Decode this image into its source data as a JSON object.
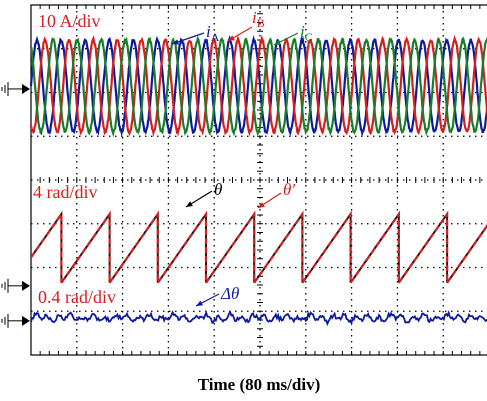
{
  "colors": {
    "phase_a": "#0d1a9c",
    "phase_b": "#d61e1e",
    "phase_c": "#1a7d2a",
    "theta": "#1a1a1a",
    "theta_est": "#d61e1e",
    "delta": "#0d1a9c",
    "scale_text": "#d61e1e",
    "grid": "#000000"
  },
  "chart_data": {
    "type": "line",
    "xlabel": "Time (80 ms/div)",
    "x_divisions": 10,
    "x_per_div_ms": 80,
    "y_divisions": 8,
    "grid": true,
    "traces": [
      {
        "group": "currents",
        "scale": "10 A/div",
        "periods_per_div": 1.9,
        "amplitude_div": 1.05,
        "ground_div_from_top": 1.85,
        "series": [
          {
            "name": "i",
            "sub": "A",
            "phase_deg": 0
          },
          {
            "name": "i",
            "sub": "B",
            "phase_deg": -120
          },
          {
            "name": "i",
            "sub": "C",
            "phase_deg": 120
          }
        ]
      },
      {
        "group": "angle",
        "scale": "4 rad/div",
        "periods_per_div": 0.95,
        "peak_rad": 6.28,
        "ground_div_from_top": 6.35,
        "series": [
          {
            "name": "θ",
            "sub": "",
            "style": "solid"
          },
          {
            "name": "θ′",
            "sub": "",
            "style": "dashed"
          }
        ]
      },
      {
        "group": "error",
        "scale": "0.4 rad/div",
        "ground_div_from_top": 7.15,
        "noise_amplitude_rad": 0.06,
        "series": [
          {
            "name": "Δθ",
            "sub": ""
          }
        ]
      }
    ]
  }
}
